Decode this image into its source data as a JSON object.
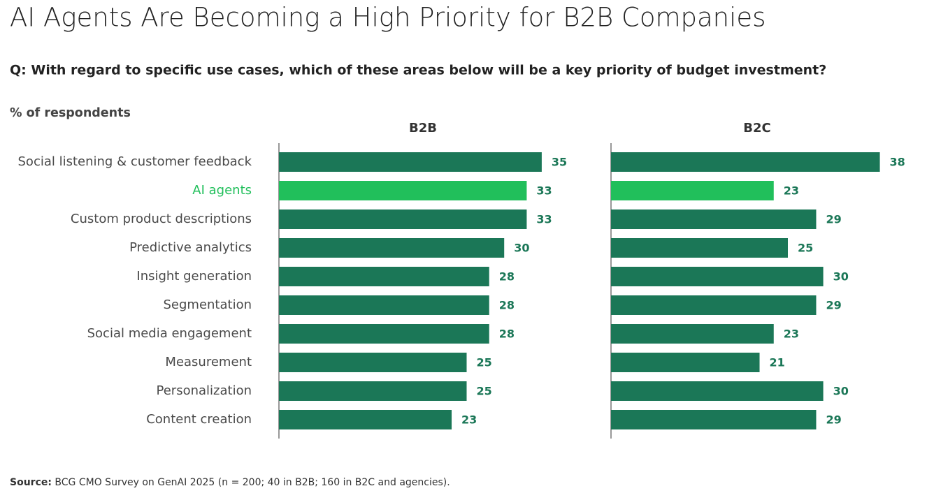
{
  "chart_data": {
    "type": "bar",
    "title": "AI Agents Are Becoming a High Priority for B2B Companies",
    "subtitle": "Q: With regard to specific use cases, which of these areas below will be a key priority of budget investment?",
    "value_axis_label": "% of respondents",
    "categories": [
      "Social listening & customer feedback",
      "AI agents",
      "Custom product descriptions",
      "Predictive analytics",
      "Insight generation",
      "Segmentation",
      "Social media engagement",
      "Measurement",
      "Personalization",
      "Content creation"
    ],
    "category_colors": [
      "#4a4a4a",
      "#21bf5b",
      "#4a4a4a",
      "#4a4a4a",
      "#4a4a4a",
      "#4a4a4a",
      "#4a4a4a",
      "#4a4a4a",
      "#4a4a4a",
      "#4a4a4a"
    ],
    "series": [
      {
        "name": "B2B",
        "values": [
          35,
          33,
          33,
          30,
          28,
          28,
          28,
          25,
          25,
          23
        ],
        "colors": [
          "#1b7757",
          "#21bf5b",
          "#1b7757",
          "#1b7757",
          "#1b7757",
          "#1b7757",
          "#1b7757",
          "#1b7757",
          "#1b7757",
          "#1b7757"
        ]
      },
      {
        "name": "B2C",
        "values": [
          38,
          23,
          29,
          25,
          30,
          29,
          23,
          21,
          30,
          29
        ],
        "colors": [
          "#1b7757",
          "#21bf5b",
          "#1b7757",
          "#1b7757",
          "#1b7757",
          "#1b7757",
          "#1b7757",
          "#1b7757",
          "#1b7757",
          "#1b7757"
        ]
      }
    ],
    "value_label_color": "#1b7757",
    "source": {
      "label": "Source:",
      "text": "BCG CMO Survey on GenAI 2025 (n = 200; 40 in B2B; 160 in B2C and agencies)."
    }
  }
}
